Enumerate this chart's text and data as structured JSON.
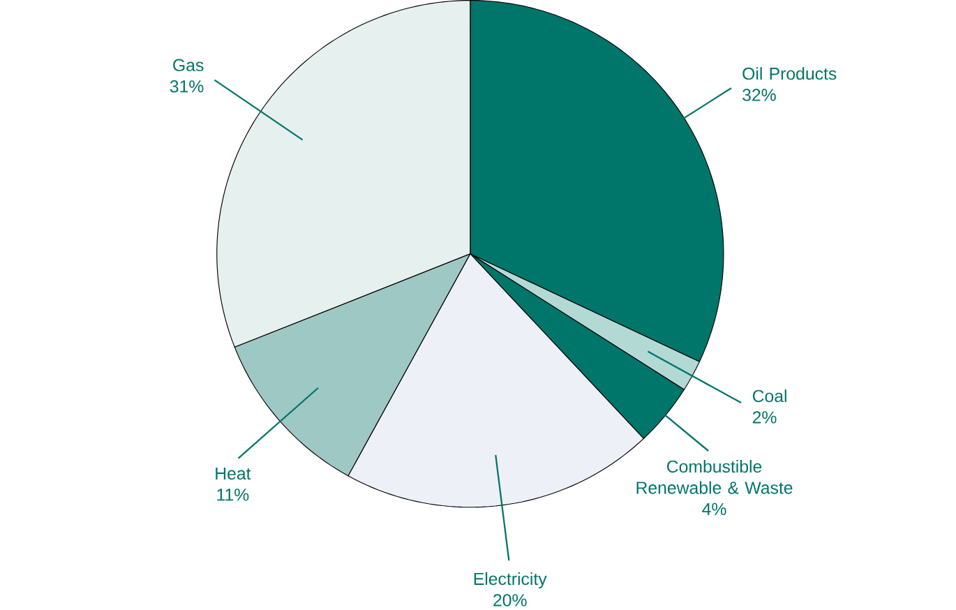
{
  "chart_data": {
    "type": "pie",
    "categories": [
      "Oil Products",
      "Coal",
      "Combustible Renewable & Waste",
      "Electricity",
      "Heat",
      "Gas"
    ],
    "values": [
      32,
      2,
      4,
      20,
      11,
      31
    ],
    "value_labels": [
      "32%",
      "2%",
      "4%",
      "20%",
      "11%",
      "31%"
    ],
    "colors": [
      "#00756a",
      "#b3d9d5",
      "#00756a",
      "#eef0f8",
      "#9ec8c4",
      "#e6f0ee"
    ]
  }
}
